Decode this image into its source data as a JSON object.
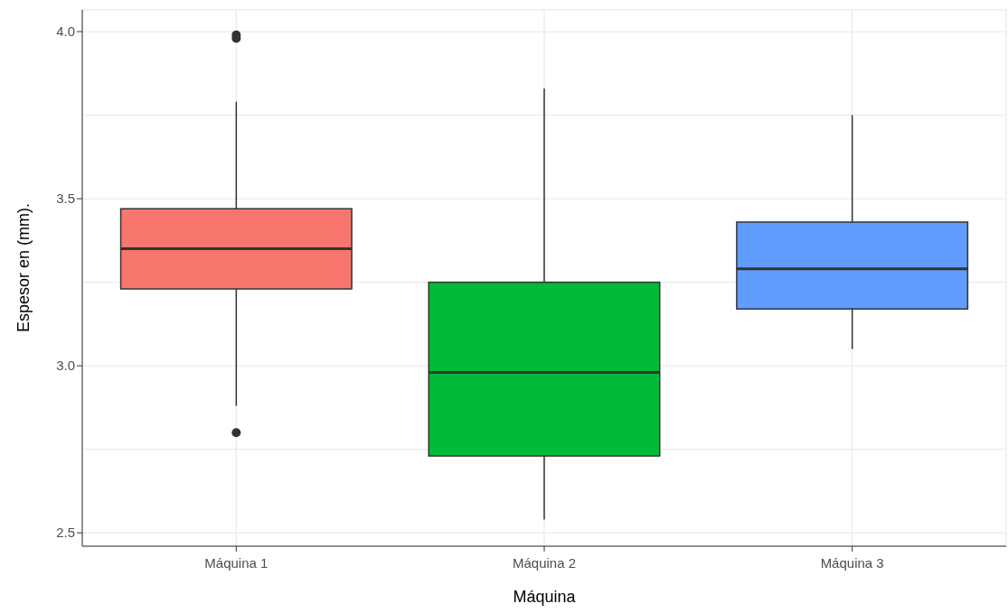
{
  "chart_data": {
    "type": "box",
    "xlabel": "Máquina",
    "ylabel": "Espesor en (mm).",
    "categories": [
      "Máquina 1",
      "Máquina 2",
      "Máquina 3"
    ],
    "colors": [
      "#f8766d",
      "#00ba38",
      "#619cff"
    ],
    "boxes": [
      {
        "low": 2.88,
        "q1": 3.23,
        "median": 3.35,
        "q3": 3.47,
        "high": 3.79,
        "outliers": [
          3.98,
          3.99,
          2.8
        ]
      },
      {
        "low": 2.54,
        "q1": 2.73,
        "median": 2.98,
        "q3": 3.25,
        "high": 3.83
      },
      {
        "low": 3.05,
        "q1": 3.17,
        "median": 3.29,
        "q3": 3.43,
        "high": 3.75
      }
    ],
    "ylim": [
      2.46,
      4.065
    ],
    "yticks": [
      {
        "value": 2.5,
        "label": "2.5"
      },
      {
        "value": 2.75,
        "label": null
      },
      {
        "value": 3,
        "label": "3.0"
      },
      {
        "value": 3.25,
        "label": null
      },
      {
        "value": 3.5,
        "label": "3.5"
      },
      {
        "value": 3.75,
        "label": null
      },
      {
        "value": 4,
        "label": "4.0"
      }
    ],
    "grid": true
  }
}
